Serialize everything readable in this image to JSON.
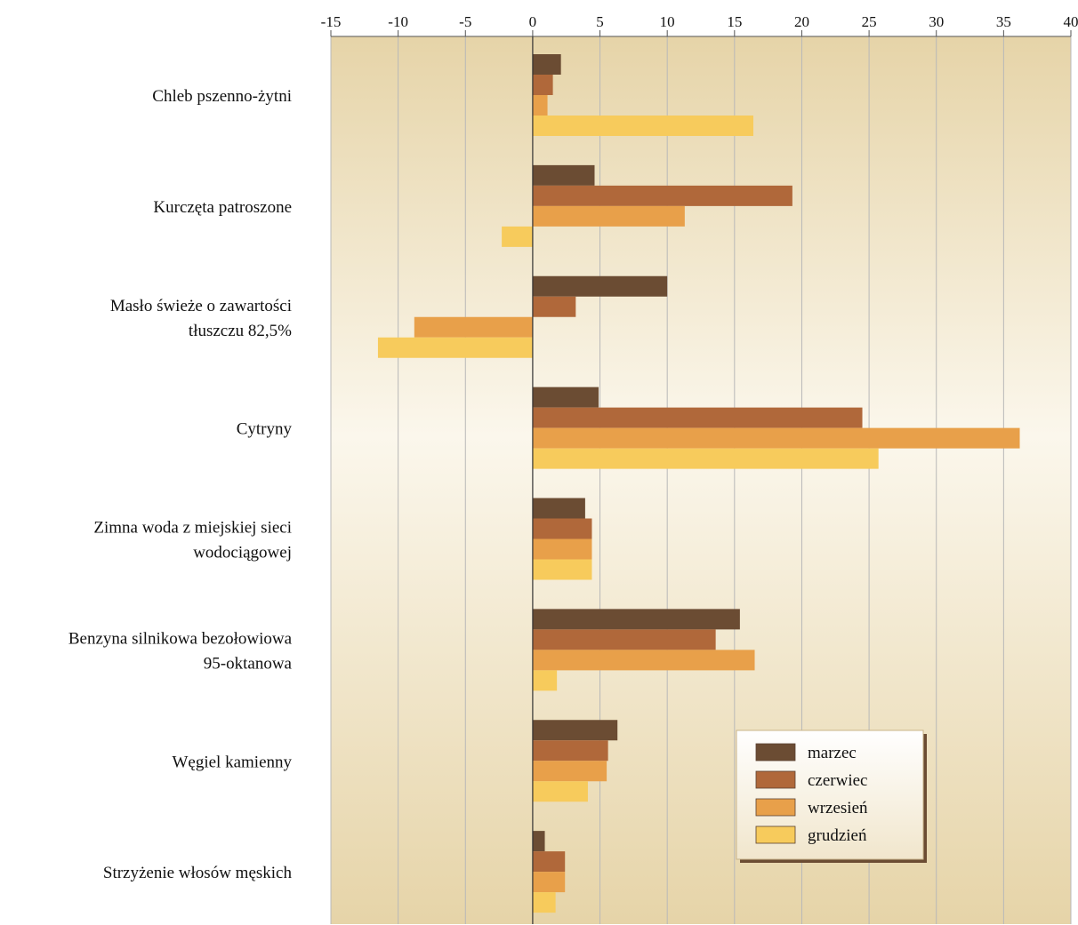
{
  "chart_data": {
    "type": "bar",
    "orientation": "horizontal",
    "categories": [
      [
        "Chleb pszenno-żytni"
      ],
      [
        "Kurczęta patroszone"
      ],
      [
        "Masło świeże o zawartości",
        "tłuszczu 82,5%"
      ],
      [
        "Cytryny"
      ],
      [
        "Zimna woda z miejskiej sieci",
        "wodociągowej"
      ],
      [
        "Benzyna silnikowa bezołowiowa",
        "95-oktanowa"
      ],
      [
        "Węgiel kamienny"
      ],
      [
        "Strzyżenie włosów męskich"
      ]
    ],
    "series": [
      {
        "name": "marzec",
        "color": "#6B4C33",
        "values": [
          2.1,
          4.6,
          10.0,
          4.9,
          3.9,
          15.4,
          6.3,
          0.9
        ]
      },
      {
        "name": "czerwiec",
        "color": "#B0683A",
        "values": [
          1.5,
          19.3,
          3.2,
          24.5,
          4.4,
          13.6,
          5.6,
          2.4
        ]
      },
      {
        "name": "wrzesień",
        "color": "#E8A04A",
        "values": [
          1.1,
          11.3,
          -8.8,
          36.2,
          4.4,
          16.5,
          5.5,
          2.4
        ]
      },
      {
        "name": "grudzień",
        "color": "#F7CB5C",
        "values": [
          16.4,
          -2.3,
          -11.5,
          25.7,
          4.4,
          1.8,
          4.1,
          1.7
        ]
      }
    ],
    "xlim": [
      -15,
      40
    ],
    "ticks": [
      "-15",
      "-10",
      "-5",
      "0",
      "5",
      "10",
      "15",
      "20",
      "25",
      "30",
      "35",
      "40"
    ],
    "tick_values": [
      -15,
      -10,
      -5,
      0,
      5,
      10,
      15,
      20,
      25,
      30,
      35,
      40
    ],
    "xlabel": "",
    "ylabel": "",
    "title": "",
    "grid": true,
    "axis_position": "top",
    "legend_position": "lower-right"
  }
}
